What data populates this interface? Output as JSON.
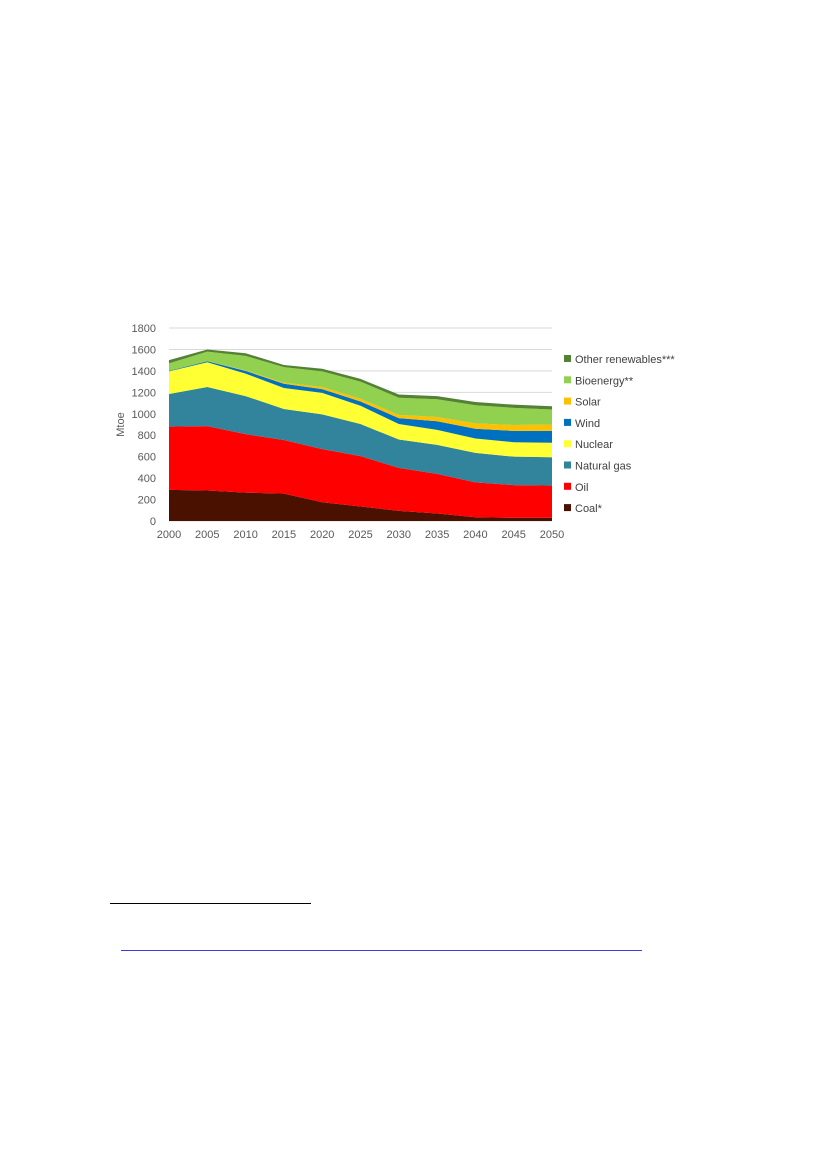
{
  "chart_data": {
    "type": "area",
    "stacked": true,
    "title": "",
    "xlabel": "",
    "ylabel": "Mtoe",
    "ylim": [
      0,
      1800
    ],
    "yticks": [
      0,
      200,
      400,
      600,
      800,
      1000,
      1200,
      1400,
      1600,
      1800
    ],
    "grid": "horizontal",
    "legend_position": "right",
    "x": [
      2000,
      2005,
      2010,
      2015,
      2020,
      2025,
      2030,
      2035,
      2040,
      2045,
      2050
    ],
    "x_tick_labels": [
      "2000",
      "2005",
      "2010",
      "2015",
      "2020",
      "2025",
      "2030",
      "2035",
      "2040",
      "2045",
      "2050"
    ],
    "series": [
      {
        "name": "Coal*",
        "color": "#4a1000",
        "values": [
          290,
          285,
          265,
          255,
          175,
          135,
          95,
          70,
          35,
          30,
          30
        ]
      },
      {
        "name": "Oil",
        "color": "#ff0000",
        "values": [
          590,
          600,
          545,
          500,
          495,
          470,
          400,
          370,
          325,
          305,
          300
        ]
      },
      {
        "name": "Natural gas",
        "color": "#31849b",
        "values": [
          305,
          365,
          355,
          290,
          325,
          300,
          265,
          270,
          275,
          265,
          265
        ]
      },
      {
        "name": "Nuclear",
        "color": "#ffff33",
        "values": [
          210,
          230,
          210,
          195,
          200,
          170,
          145,
          140,
          135,
          135,
          135
        ]
      },
      {
        "name": "Wind",
        "color": "#0070c0",
        "values": [
          5,
          10,
          25,
          40,
          35,
          40,
          55,
          80,
          90,
          105,
          110
        ]
      },
      {
        "name": "Solar",
        "color": "#ffc000",
        "values": [
          0,
          0,
          5,
          10,
          20,
          25,
          30,
          40,
          50,
          55,
          60
        ]
      },
      {
        "name": "Bioenergy**",
        "color": "#92d050",
        "values": [
          70,
          90,
          135,
          145,
          145,
          160,
          160,
          165,
          170,
          160,
          140
        ]
      },
      {
        "name": "Other renewables***",
        "color": "#548235",
        "values": [
          30,
          20,
          25,
          20,
          25,
          25,
          30,
          30,
          30,
          30,
          30
        ]
      }
    ]
  }
}
